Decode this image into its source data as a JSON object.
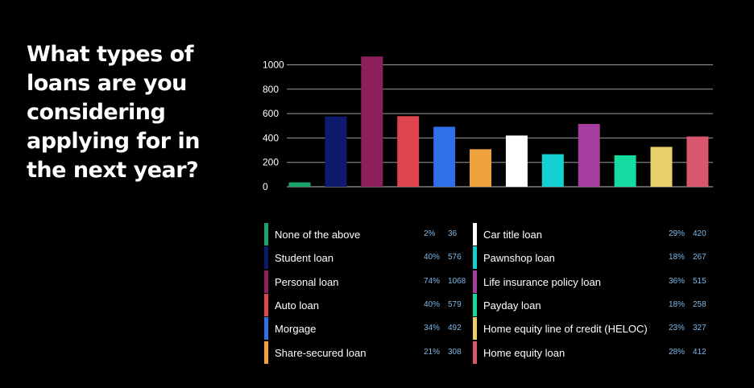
{
  "question": "What types of loans are you considering applying for in the next year?",
  "chart_data": {
    "type": "bar",
    "categories": [
      "None of the above",
      "Student loan",
      "Personal loan",
      "Auto loan",
      "Morgage",
      "Share-secured loan",
      "Car title loan",
      "Pawnshop loan",
      "Life insurance policy loan",
      "Payday loan",
      "Home equity line of credit (HELOC)",
      "Home equity loan"
    ],
    "values": [
      36,
      576,
      1068,
      579,
      492,
      308,
      420,
      267,
      515,
      258,
      327,
      412
    ],
    "percents": [
      "2%",
      "40%",
      "74%",
      "40%",
      "34%",
      "21%",
      "29%",
      "18%",
      "36%",
      "18%",
      "23%",
      "28%"
    ],
    "colors": [
      "#1aa36b",
      "#0d1a6e",
      "#8c1f5c",
      "#e0444c",
      "#2f6fe8",
      "#f0a23c",
      "#ffffff",
      "#14d1d1",
      "#a63ea0",
      "#14dca0",
      "#e8cf6a",
      "#d9576e"
    ],
    "yticks": [
      0,
      200,
      400,
      600,
      800,
      1000
    ],
    "ylim": [
      0,
      1068
    ],
    "grid": true,
    "legend_position": "bottom"
  }
}
